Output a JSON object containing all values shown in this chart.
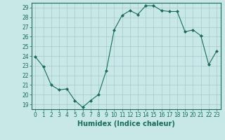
{
  "x": [
    0,
    1,
    2,
    3,
    4,
    5,
    6,
    7,
    8,
    9,
    10,
    11,
    12,
    13,
    14,
    15,
    16,
    17,
    18,
    19,
    20,
    21,
    22,
    23
  ],
  "y": [
    23.9,
    22.9,
    21.0,
    20.5,
    20.6,
    19.4,
    18.7,
    19.4,
    20.0,
    22.5,
    26.7,
    28.2,
    28.7,
    28.3,
    29.2,
    29.2,
    28.7,
    28.6,
    28.6,
    26.5,
    26.7,
    26.1,
    23.1,
    24.5
  ],
  "line_color": "#1a6b5a",
  "marker": "D",
  "marker_size": 2,
  "bg_color": "#c8e8e8",
  "grid_color": "#a8c8cc",
  "xlabel": "Humidex (Indice chaleur)",
  "xlim": [
    -0.5,
    23.5
  ],
  "ylim": [
    18.5,
    29.5
  ],
  "yticks": [
    19,
    20,
    21,
    22,
    23,
    24,
    25,
    26,
    27,
    28,
    29
  ],
  "xticks": [
    0,
    1,
    2,
    3,
    4,
    5,
    6,
    7,
    8,
    9,
    10,
    11,
    12,
    13,
    14,
    15,
    16,
    17,
    18,
    19,
    20,
    21,
    22,
    23
  ],
  "tick_fontsize": 5.5,
  "label_fontsize": 7
}
